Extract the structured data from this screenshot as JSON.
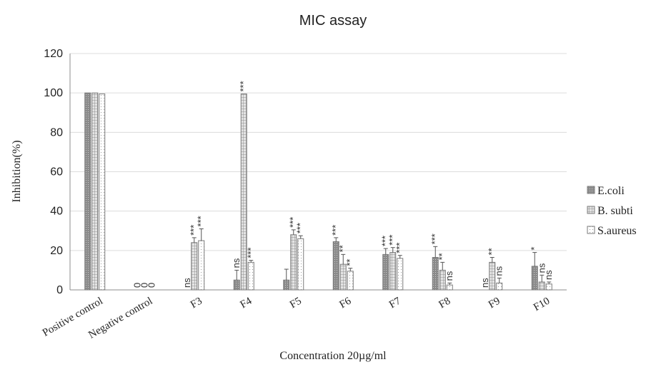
{
  "chart_data": {
    "type": "bar",
    "title": "MIC assay",
    "xlabel": "Concentration 20µg/ml",
    "ylabel": "Inhibition(%)",
    "ylim": [
      0,
      120
    ],
    "yticks": [
      "0",
      "20",
      "40",
      "60",
      "80",
      "100",
      "120"
    ],
    "grid": true,
    "legend_position": "right",
    "categories": [
      "Positive control",
      "Negative control",
      "F3",
      "F4",
      "F5",
      "F6",
      "F7",
      "F8",
      "F9",
      "F10"
    ],
    "series": [
      {
        "name": "E.coli",
        "pattern": "dense-dots",
        "values": [
          100,
          0,
          0,
          5,
          5,
          24.5,
          18,
          16.5,
          0,
          12
        ],
        "errors": [
          0,
          0,
          0,
          5,
          5.5,
          2,
          3,
          5.5,
          0,
          7
        ],
        "significance": [
          "",
          "0",
          "ns",
          "ns",
          "",
          "***",
          "***",
          "***",
          "ns",
          "*"
        ]
      },
      {
        "name": "B. subtilis",
        "pattern": "grid",
        "values": [
          100,
          0,
          24,
          99.5,
          28,
          13,
          19,
          10,
          14,
          4
        ],
        "errors": [
          0,
          0,
          2.5,
          0,
          2.5,
          5,
          2.5,
          4,
          2.5,
          3.5
        ],
        "significance": [
          "",
          "0",
          "***",
          "***",
          "***",
          "**",
          "***",
          "**",
          "**",
          "ns"
        ]
      },
      {
        "name": "S.aureus",
        "pattern": "sparse-dots",
        "values": [
          99.5,
          0,
          25,
          14,
          26,
          9.5,
          16,
          2.5,
          3.5,
          3
        ],
        "errors": [
          0,
          0,
          6,
          1,
          1.5,
          1.5,
          1.5,
          1,
          2.5,
          1
        ],
        "significance": [
          "",
          "0",
          "***",
          "***",
          "***",
          "**",
          "***",
          "ns",
          "ns",
          "ns"
        ]
      }
    ],
    "legend_labels": [
      "E.coli",
      "B. subti",
      "S.aureus"
    ]
  }
}
